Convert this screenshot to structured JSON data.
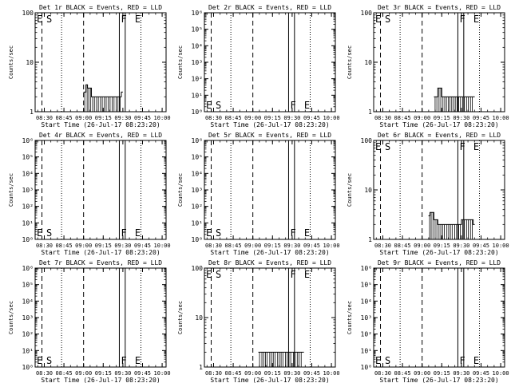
{
  "x_tick_labels": [
    "08:30",
    "08:45",
    "09:00",
    "09:15",
    "09:30",
    "09:45",
    "10:00"
  ],
  "ylabel": "Counts/sec",
  "xlabel": "Start Time (26-Jul-17 08:23:20)",
  "marker_labels": {
    "E": "E",
    "S": "S",
    "F": "F"
  },
  "chart_data": [
    {
      "type": "line",
      "title": "Det 1r BLACK = Events, RED = LLD",
      "yscale": "log",
      "ylim": [
        1,
        100
      ],
      "y_tick_labels": [
        "1",
        "10",
        "100"
      ],
      "markers": {
        "left": [
          "E",
          "S"
        ],
        "right": [
          "F",
          "E"
        ],
        "label_pos": "top"
      },
      "series": [
        {
          "x": [
            9.0,
            9.03,
            9.05,
            9.1,
            9.15,
            9.2,
            9.25,
            9.3,
            9.35,
            9.4,
            9.45,
            9.48
          ],
          "y": [
            2.5,
            3.5,
            3.0,
            2.0,
            2.0,
            2.0,
            2.0,
            2.0,
            2.0,
            2.0,
            2.0,
            2.5
          ]
        }
      ]
    },
    {
      "type": "line",
      "title": "Det 2r BLACK = Events, RED = LLD",
      "yscale": "log",
      "ylim": [
        1,
        1000000
      ],
      "y_tick_labels": [
        "10⁰",
        "10¹",
        "10²",
        "10³",
        "10⁴",
        "10⁵",
        "10⁶"
      ],
      "markers": {
        "left": [
          "E",
          "S"
        ],
        "right": [
          "F",
          "E"
        ],
        "label_pos": "bottom"
      },
      "series": []
    },
    {
      "type": "line",
      "title": "Det 3r BLACK = Events, RED = LLD",
      "yscale": "log",
      "ylim": [
        1,
        100
      ],
      "y_tick_labels": [
        "1",
        "10",
        "100"
      ],
      "markers": {
        "left": [
          "E",
          "S"
        ],
        "right": [
          "F",
          "E"
        ],
        "label_pos": "top"
      },
      "series": [
        {
          "x": [
            9.15,
            9.2,
            9.25,
            9.5,
            9.55,
            9.6,
            9.65
          ],
          "y": [
            2.0,
            3.0,
            2.0,
            2.0,
            2.0,
            2.0,
            2.0
          ]
        }
      ]
    },
    {
      "type": "line",
      "title": "Det 4r BLACK = Events, RED = LLD",
      "yscale": "log",
      "ylim": [
        1,
        1000000
      ],
      "y_tick_labels": [
        "10⁰",
        "10¹",
        "10²",
        "10³",
        "10⁴",
        "10⁵",
        "10⁶"
      ],
      "markers": {
        "left": [
          "E",
          "S"
        ],
        "right": [
          "F",
          "E"
        ],
        "label_pos": "bottom"
      },
      "series": []
    },
    {
      "type": "line",
      "title": "Det 5r BLACK = Events, RED = LLD",
      "yscale": "log",
      "ylim": [
        1,
        1000000
      ],
      "y_tick_labels": [
        "10⁰",
        "10¹",
        "10²",
        "10³",
        "10⁴",
        "10⁵",
        "10⁶"
      ],
      "markers": {
        "left": [
          "E",
          "S"
        ],
        "right": [
          "F",
          "E"
        ],
        "label_pos": "bottom"
      },
      "series": []
    },
    {
      "type": "line",
      "title": "Det 6r BLACK = Events, RED = LLD",
      "yscale": "log",
      "ylim": [
        1,
        100
      ],
      "y_tick_labels": [
        "1",
        "10",
        "100"
      ],
      "markers": {
        "left": [
          "E",
          "S"
        ],
        "right": [
          "F",
          "E"
        ],
        "label_pos": "top"
      },
      "series": [
        {
          "x": [
            9.08,
            9.1,
            9.15,
            9.2,
            9.3,
            9.4,
            9.45,
            9.5,
            9.55,
            9.6,
            9.65
          ],
          "y": [
            3.0,
            3.5,
            2.5,
            2.0,
            2.0,
            2.0,
            2.0,
            2.5,
            2.5,
            2.5,
            2.0
          ]
        }
      ]
    },
    {
      "type": "line",
      "title": "Det 7r BLACK = Events, RED = LLD",
      "yscale": "log",
      "ylim": [
        1,
        1000000
      ],
      "y_tick_labels": [
        "10⁰",
        "10¹",
        "10²",
        "10³",
        "10⁴",
        "10⁵",
        "10⁶"
      ],
      "markers": {
        "left": [
          "E",
          "S"
        ],
        "right": [
          "F",
          "E"
        ],
        "label_pos": "bottom"
      },
      "series": []
    },
    {
      "type": "line",
      "title": "Det 8r BLACK = Events, RED = LLD",
      "yscale": "log",
      "ylim": [
        1,
        100
      ],
      "y_tick_labels": [
        "1",
        "10",
        "100"
      ],
      "markers": {
        "left": [
          "E",
          "S"
        ],
        "right": [
          "F",
          "E"
        ],
        "label_pos": "top"
      },
      "series": [
        {
          "x": [
            9.07,
            9.1,
            9.2,
            9.3,
            9.4,
            9.5,
            9.55,
            9.6,
            9.63
          ],
          "y": [
            2.0,
            2.0,
            2.0,
            2.0,
            2.0,
            2.0,
            2.0,
            2.0,
            2.0
          ]
        }
      ]
    },
    {
      "type": "line",
      "title": "Det 9r BLACK = Events, RED = LLD",
      "yscale": "log",
      "ylim": [
        1,
        1000000
      ],
      "y_tick_labels": [
        "10⁰",
        "10¹",
        "10²",
        "10³",
        "10⁴",
        "10⁵",
        "10⁶"
      ],
      "markers": {
        "left": [
          "E",
          "S"
        ],
        "right": [
          "F",
          "E"
        ],
        "label_pos": "bottom"
      },
      "series": []
    }
  ]
}
